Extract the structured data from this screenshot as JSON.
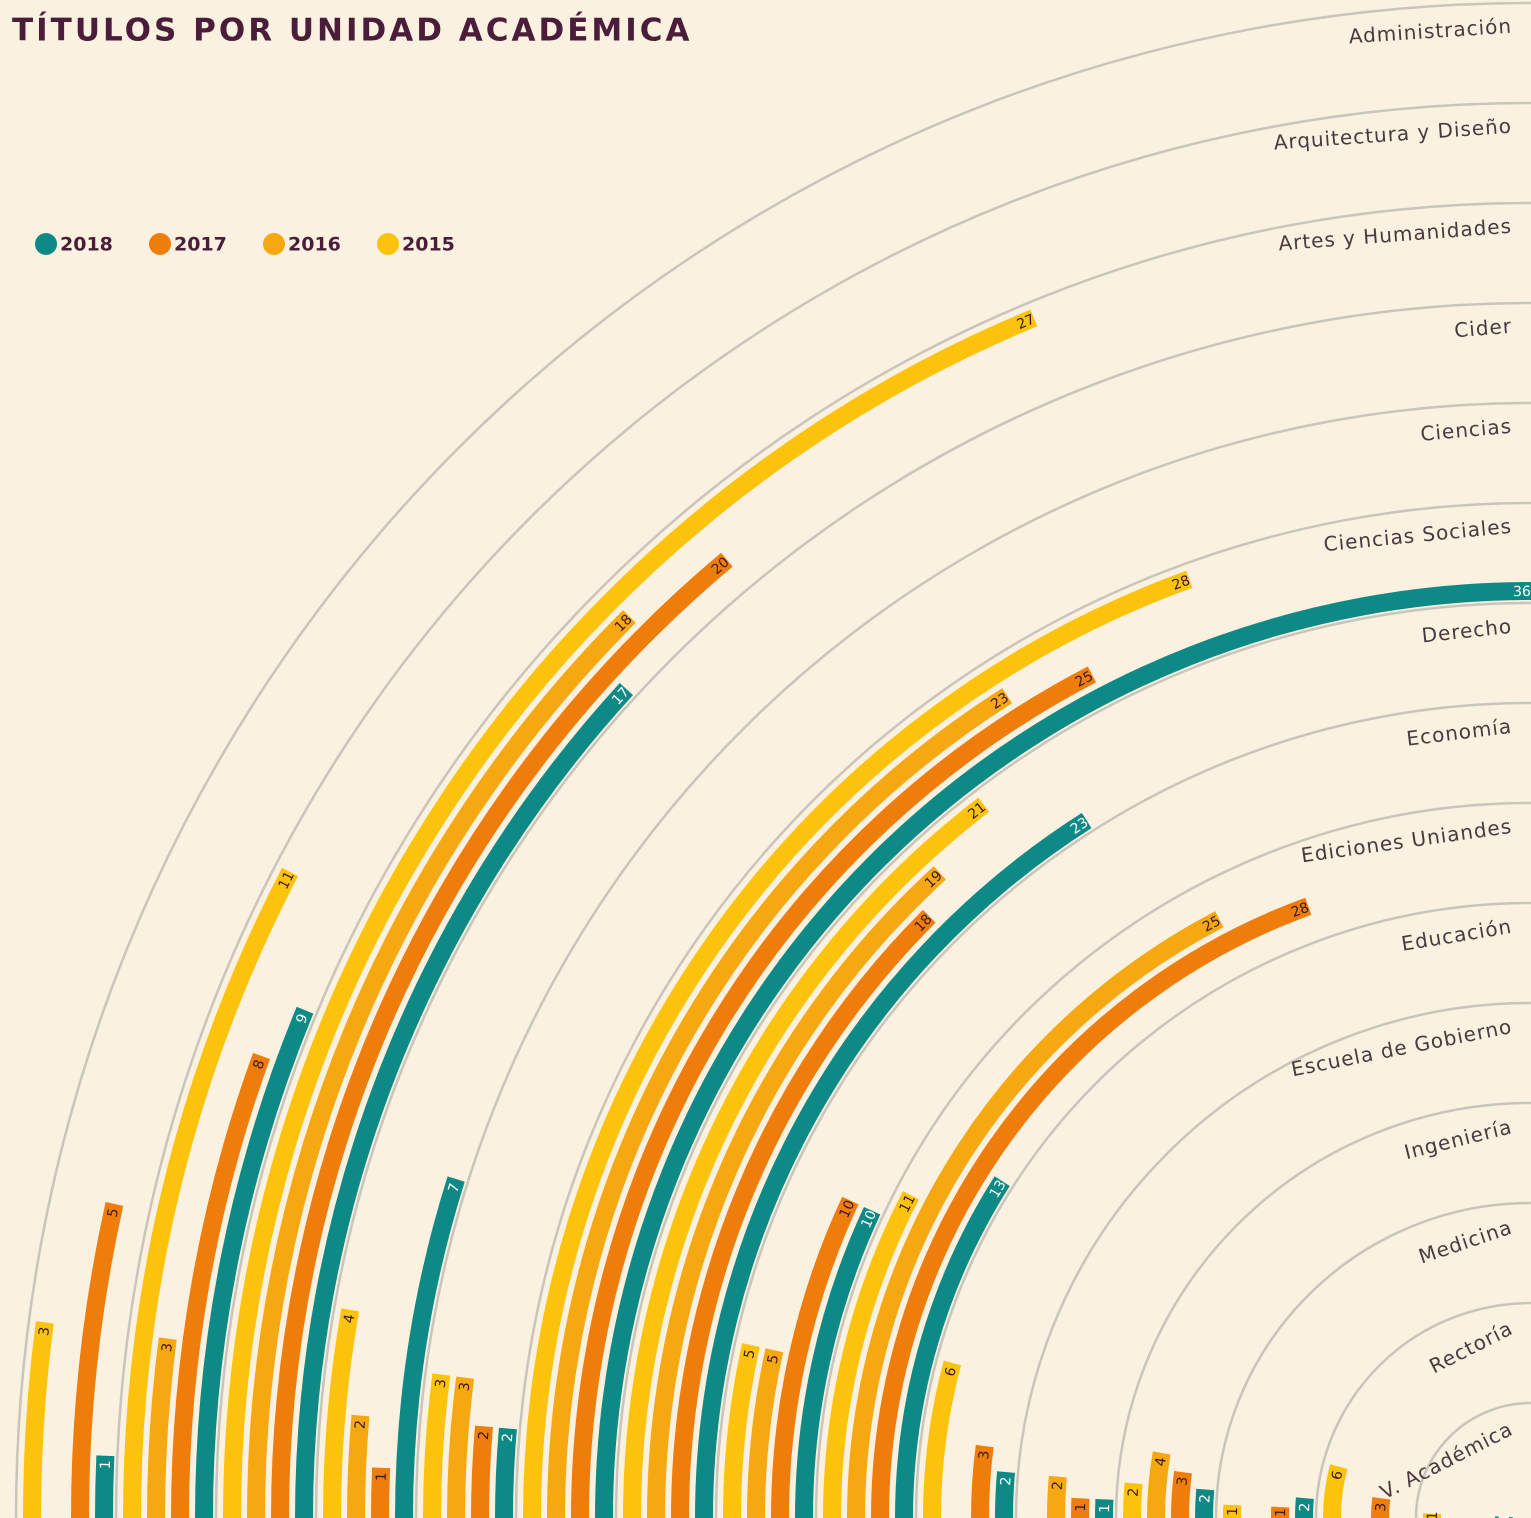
{
  "chart_data": {
    "type": "radial_bar",
    "title": "TÍTULOS POR UNIDAD ACADÉMICA",
    "categories": [
      "Administración",
      "Arquitectura y Diseño",
      "Artes y Humanidades",
      "Cider",
      "Ciencias",
      "Ciencias Sociales",
      "Derecho",
      "Economía",
      "Ediciones Uniandes",
      "Educación",
      "Escuela de Gobierno",
      "Ingeniería",
      "Medicina",
      "Rectoría",
      "V. Académica"
    ],
    "series": [
      {
        "name": "2018",
        "color": "#0e8a86",
        "values": [
          1,
          9,
          17,
          7,
          2,
          36,
          23,
          10,
          13,
          2,
          1,
          2,
          2,
          null,
          1
        ]
      },
      {
        "name": "2017",
        "color": "#ef7d0c",
        "values": [
          5,
          8,
          20,
          1,
          2,
          25,
          18,
          10,
          28,
          3,
          1,
          3,
          1,
          3,
          null
        ]
      },
      {
        "name": "2016",
        "color": "#f5a80f",
        "values": [
          null,
          3,
          18,
          2,
          3,
          23,
          19,
          5,
          25,
          null,
          2,
          4,
          null,
          null,
          null
        ]
      },
      {
        "name": "2015",
        "color": "#fcc30d",
        "values": [
          3,
          11,
          27,
          4,
          3,
          28,
          21,
          5,
          11,
          6,
          null,
          2,
          1,
          6,
          1
        ]
      }
    ],
    "ylim": [
      0,
      36
    ]
  }
}
